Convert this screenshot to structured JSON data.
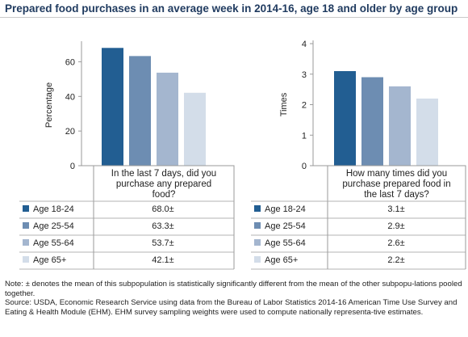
{
  "title": "Prepared food purchases in an average week in 2014-16, age 18 and older by age group",
  "colors": {
    "Age 18-24": "#225e92",
    "Age 25-54": "#6d8db2",
    "Age 55-64": "#a4b6cf",
    "Age 65+": "#d3dde9"
  },
  "chart_data": [
    {
      "type": "bar",
      "ylabel": "Percentage",
      "ylim": [
        0,
        70
      ],
      "yticks": [
        0,
        20,
        40,
        60
      ],
      "gridlines": false,
      "question": [
        "In the last 7 days, did you",
        "purchase any prepared",
        "food?"
      ],
      "categories": [
        "Age 18-24",
        "Age 25-54",
        "Age 55-64",
        "Age 65+"
      ],
      "values": [
        68.0,
        63.3,
        53.7,
        42.1
      ],
      "labels": [
        "68.0±",
        "63.3±",
        "53.7±",
        "42.1±"
      ]
    },
    {
      "type": "bar",
      "ylabel": "Times",
      "ylim": [
        0,
        4
      ],
      "yticks": [
        0,
        1,
        2,
        3,
        4
      ],
      "gridlines": false,
      "question": [
        "How many times did you",
        "purchase prepared food in",
        "the last 7 days?"
      ],
      "categories": [
        "Age 18-24",
        "Age 25-54",
        "Age 55-64",
        "Age 65+"
      ],
      "values": [
        3.1,
        2.9,
        2.6,
        2.2
      ],
      "labels": [
        "3.1±",
        "2.9±",
        "2.6±",
        "2.2±"
      ]
    }
  ],
  "note": {
    "line1": "Note: ± denotes the mean of this subpopulation is statistically significantly different from the mean of the other subpopu-lations pooled together.",
    "line2": "Source: USDA, Economic Research Service using data from the Bureau of Labor Statistics 2014-16 American Time Use Survey and Eating & Health Module (EHM). EHM survey sampling weights were used to compute nationally representa-tive estimates."
  }
}
